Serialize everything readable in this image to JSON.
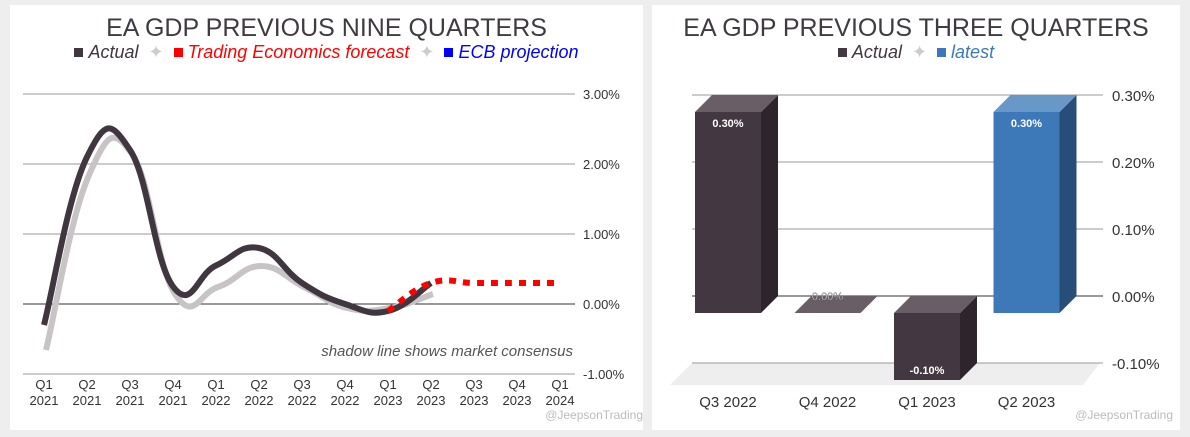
{
  "chart_data": [
    {
      "type": "line",
      "title": "EA GDP PREVIOUS NINE QUARTERS",
      "legend": [
        {
          "label": "Actual",
          "color": "#403640"
        },
        {
          "label": "Trading Economics forecast",
          "color": "#ff0000"
        },
        {
          "label": "ECB projection",
          "color": "#0000ff"
        }
      ],
      "x_ticks": [
        [
          "Q1",
          "2021"
        ],
        [
          "Q2",
          "2021"
        ],
        [
          "Q3",
          "2021"
        ],
        [
          "Q4",
          "2021"
        ],
        [
          "Q1",
          "2022"
        ],
        [
          "Q2",
          "2022"
        ],
        [
          "Q3",
          "2022"
        ],
        [
          "Q4",
          "2022"
        ],
        [
          "Q1",
          "2023"
        ],
        [
          "Q2",
          "2023"
        ],
        [
          "Q3",
          "2023"
        ],
        [
          "Q4",
          "2023"
        ],
        [
          "Q1",
          "2024"
        ]
      ],
      "y_ticks": [
        "3.00%",
        "2.00%",
        "1.00%",
        "0.00%",
        "-1.00%"
      ],
      "y_tick_values": [
        3,
        2,
        1,
        0,
        -1
      ],
      "ylim": [
        -1,
        3
      ],
      "series": [
        {
          "name": "Actual",
          "color": "#403640",
          "x_index": [
            0,
            1,
            2,
            3,
            4,
            5,
            6,
            7,
            8,
            9
          ],
          "values": [
            -0.3,
            2.1,
            2.2,
            0.25,
            0.55,
            0.8,
            0.3,
            0.0,
            -0.1,
            0.3
          ]
        },
        {
          "name": "Market consensus (shadow)",
          "color": "#c8c4c6",
          "x_index": [
            0,
            1,
            2,
            3,
            4,
            5,
            6,
            7,
            8,
            9
          ],
          "values": [
            -0.6,
            1.9,
            2.2,
            0.2,
            0.3,
            0.6,
            0.3,
            0.0,
            0.0,
            0.2
          ]
        },
        {
          "name": "Trading Economics forecast",
          "color": "#ff0000",
          "x_index": [
            8,
            9,
            10,
            11,
            12
          ],
          "values": [
            -0.1,
            0.3,
            0.3,
            0.3,
            0.3
          ]
        }
      ],
      "annotation": "shadow line shows market consensus",
      "watermark": "@JeepsonTrading"
    },
    {
      "type": "bar",
      "title": "EA GDP PREVIOUS THREE QUARTERS",
      "legend": [
        {
          "label": "Actual",
          "color": "#433742"
        },
        {
          "label": "latest",
          "color": "#3d78b8"
        }
      ],
      "categories": [
        "Q3 2022",
        "Q4 2022",
        "Q1 2023",
        "Q2 2023"
      ],
      "values": [
        0.3,
        0.0,
        -0.1,
        0.3
      ],
      "data_labels": [
        "0.30%",
        "0.00%",
        "-0.10%",
        "0.30%"
      ],
      "series_of_bar": [
        "Actual",
        "Actual",
        "Actual",
        "latest"
      ],
      "y_ticks": [
        "0.30%",
        "0.20%",
        "0.10%",
        "0.00%",
        "-0.10%"
      ],
      "y_tick_values": [
        0.3,
        0.2,
        0.1,
        0,
        -0.1
      ],
      "ylim": [
        -0.1,
        0.3
      ],
      "watermark": "@JeepsonTrading"
    }
  ]
}
